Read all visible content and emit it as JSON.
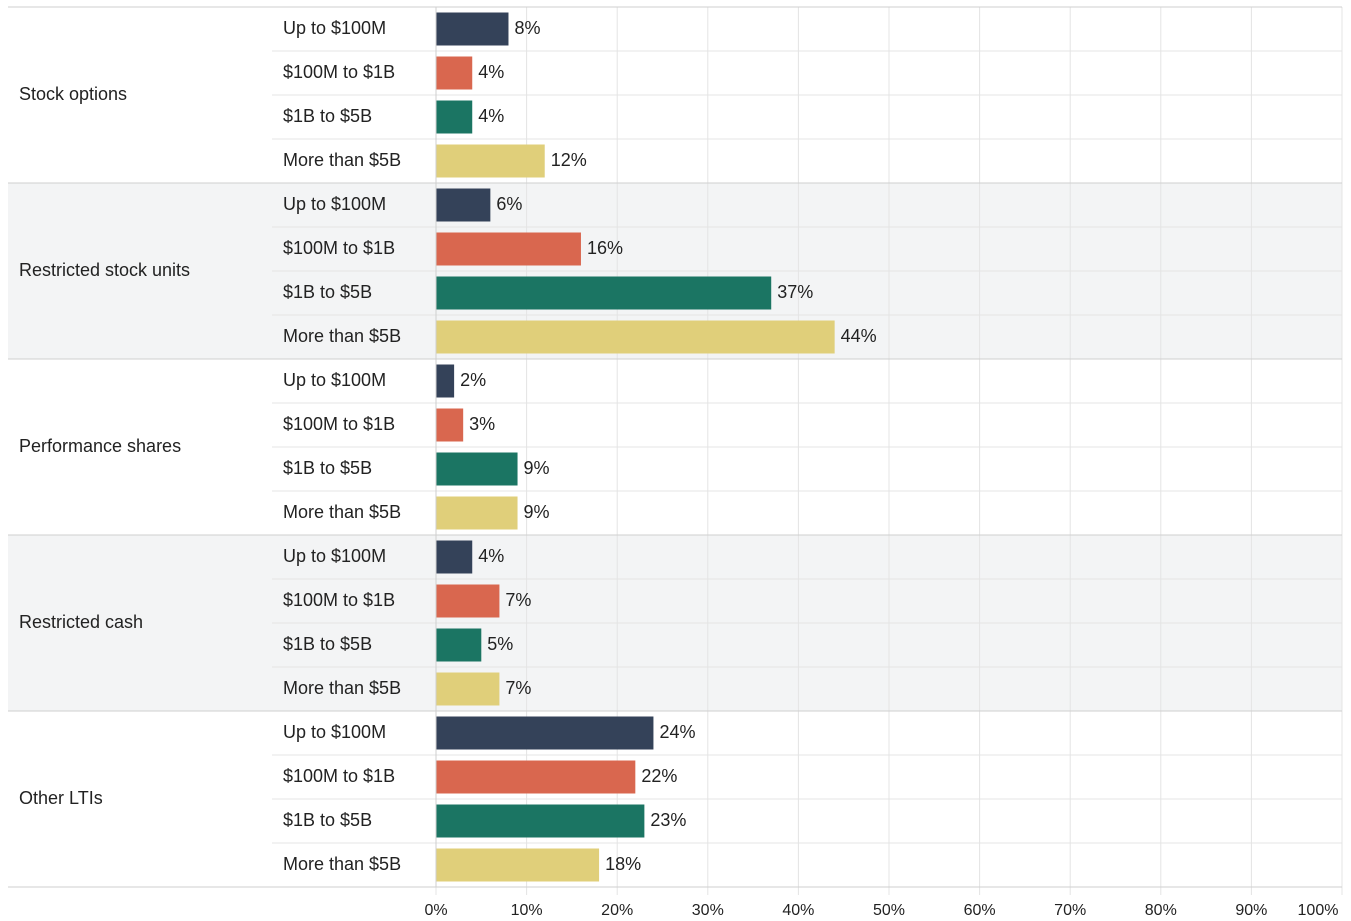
{
  "chart_data": {
    "type": "grouped-hbar",
    "categories": [
      "Stock options",
      "Restricted stock units",
      "Performance shares",
      "Restricted cash",
      "Other LTIs"
    ],
    "series": [
      {
        "name": "Up to $100M",
        "color": "#344259",
        "values": [
          8,
          6,
          2,
          4,
          24
        ],
        "value_labels": [
          "8%",
          "6%",
          "2%",
          "4%",
          "24%"
        ]
      },
      {
        "name": "$100M to $1B",
        "color": "#d9674f",
        "values": [
          4,
          16,
          3,
          7,
          22
        ],
        "value_labels": [
          "4%",
          "16%",
          "3%",
          "7%",
          "22%"
        ]
      },
      {
        "name": "$1B to $5B",
        "color": "#1b7563",
        "values": [
          4,
          37,
          9,
          5,
          23
        ],
        "value_labels": [
          "4%",
          "37%",
          "9%",
          "5%",
          "23%"
        ]
      },
      {
        "name": "More than $5B",
        "color": "#e0cf7a",
        "values": [
          12,
          44,
          9,
          7,
          18
        ],
        "value_labels": [
          "12%",
          "44%",
          "9%",
          "7%",
          "18%"
        ]
      }
    ],
    "xlim": [
      0,
      100
    ],
    "xticks": [
      {
        "value": 0,
        "label": "0%"
      },
      {
        "value": 10,
        "label": "10%"
      },
      {
        "value": 20,
        "label": "20%"
      },
      {
        "value": 30,
        "label": "30%"
      },
      {
        "value": 40,
        "label": "40%"
      },
      {
        "value": 50,
        "label": "50%"
      },
      {
        "value": 60,
        "label": "60%"
      },
      {
        "value": 70,
        "label": "70%"
      },
      {
        "value": 80,
        "label": "80%"
      },
      {
        "value": 90,
        "label": "90%"
      },
      {
        "value": 100,
        "label": "100%"
      }
    ],
    "grid": true
  }
}
